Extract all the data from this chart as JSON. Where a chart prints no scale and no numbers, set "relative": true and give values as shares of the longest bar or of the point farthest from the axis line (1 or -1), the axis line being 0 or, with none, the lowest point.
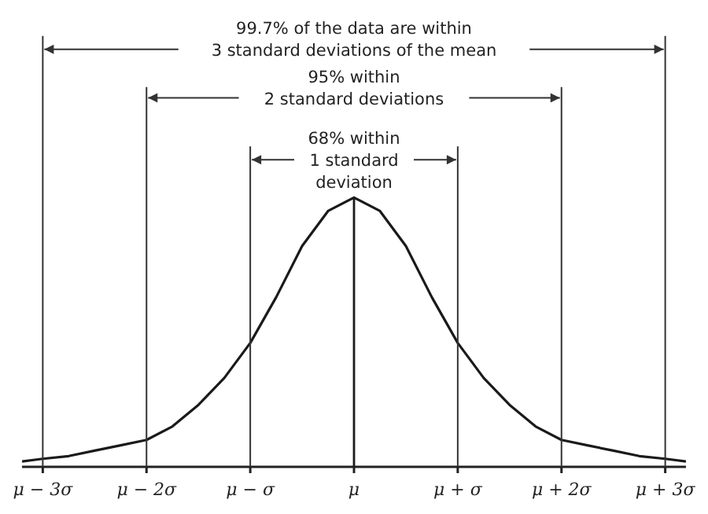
{
  "chart_data": {
    "type": "line",
    "relative": true,
    "marker": "none",
    "x": [
      -3.2,
      -3,
      -2.75,
      -2.5,
      -2.25,
      -2,
      -1.75,
      -1.5,
      -1.25,
      -1,
      -0.75,
      -0.5,
      -0.25,
      0,
      0.25,
      0.5,
      0.75,
      1,
      1.25,
      1.5,
      1.75,
      2,
      2.25,
      2.5,
      2.75,
      3,
      3.2
    ],
    "series": [
      {
        "color": "#1a1a1a",
        "values": [
          0.02,
          0.03,
          0.04,
          0.06,
          0.08,
          0.1,
          0.15,
          0.23,
          0.33,
          0.46,
          0.63,
          0.82,
          0.95,
          1,
          0.95,
          0.82,
          0.63,
          0.46,
          0.33,
          0.23,
          0.15,
          0.1,
          0.08,
          0.06,
          0.04,
          0.03,
          0.02
        ]
      }
    ],
    "xlim": [
      -3.2,
      3.2
    ],
    "xticks": [
      {
        "value": -3,
        "label": "μ − 3σ"
      },
      {
        "value": -2,
        "label": "μ − 2σ"
      },
      {
        "value": -1,
        "label": "μ − σ"
      },
      {
        "value": 0,
        "label": "μ"
      },
      {
        "value": 1,
        "label": "μ + σ"
      },
      {
        "value": 2,
        "label": "μ + 2σ"
      },
      {
        "value": 3,
        "label": "μ + 3σ"
      }
    ],
    "ref_lines": [
      {
        "axis": "x",
        "value": -3,
        "color": "#333333"
      },
      {
        "axis": "x",
        "value": 3,
        "color": "#333333"
      },
      {
        "axis": "x",
        "value": -2,
        "color": "#333333"
      },
      {
        "axis": "x",
        "value": 2,
        "color": "#333333"
      },
      {
        "axis": "x",
        "value": -1,
        "color": "#333333"
      },
      {
        "axis": "x",
        "value": 1,
        "color": "#333333"
      },
      {
        "axis": "x",
        "value": 0,
        "color": "#1a1a1a"
      }
    ],
    "annotations": [
      "99.7% of the data are within\n3 standard deviations of the mean",
      "95% within\n2 standard deviations",
      "68% within\n1 standard\ndeviation"
    ]
  }
}
